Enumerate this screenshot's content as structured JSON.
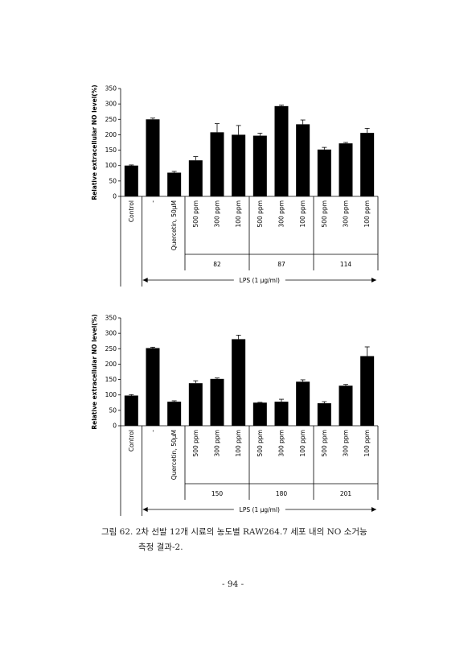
{
  "chart_data": [
    {
      "type": "bar",
      "ylabel": "Relative extracellular NO level(%)",
      "categories": [
        "Control",
        "-",
        "Quercetin, 50μM",
        "500 ppm",
        "300 ppm",
        "100 ppm",
        "500 ppm",
        "300 ppm",
        "100 ppm",
        "500 ppm",
        "300 ppm",
        "100 ppm"
      ],
      "values": [
        100,
        250,
        77,
        117,
        208,
        200,
        197,
        293,
        234,
        152,
        172,
        206
      ],
      "errors": [
        2,
        4,
        4,
        12,
        28,
        30,
        8,
        3,
        14,
        7,
        3,
        15
      ],
      "color": "#000000",
      "ylim": [
        0,
        350
      ],
      "yticks": [
        0,
        50,
        100,
        150,
        200,
        250,
        300,
        350
      ],
      "group_labels": [
        "82",
        "87",
        "114"
      ],
      "treatment_label": "LPS (1 μg/ml)"
    },
    {
      "type": "bar",
      "ylabel": "Relative extracellular NO level(%)",
      "categories": [
        "Control",
        "-",
        "Quercetin, 50μM",
        "500 ppm",
        "300 ppm",
        "100 ppm",
        "500 ppm",
        "300 ppm",
        "100 ppm",
        "500 ppm",
        "300 ppm",
        "100 ppm"
      ],
      "values": [
        98,
        252,
        78,
        138,
        152,
        281,
        75,
        78,
        143,
        73,
        130,
        226
      ],
      "errors": [
        3,
        3,
        3,
        8,
        3,
        13,
        1,
        8,
        6,
        5,
        4,
        30
      ],
      "color": "#000000",
      "ylim": [
        0,
        350
      ],
      "yticks": [
        0,
        50,
        100,
        150,
        200,
        250,
        300,
        350
      ],
      "group_labels": [
        "150",
        "180",
        "201"
      ],
      "treatment_label": "LPS (1 μg/ml)"
    }
  ],
  "caption": [
    "그림 62. 2차 선발 12개 시료의 농도별 RAW264.7 세포 내의 NO 소거능",
    "측정 결과-2."
  ],
  "page_number": "- 94 -"
}
